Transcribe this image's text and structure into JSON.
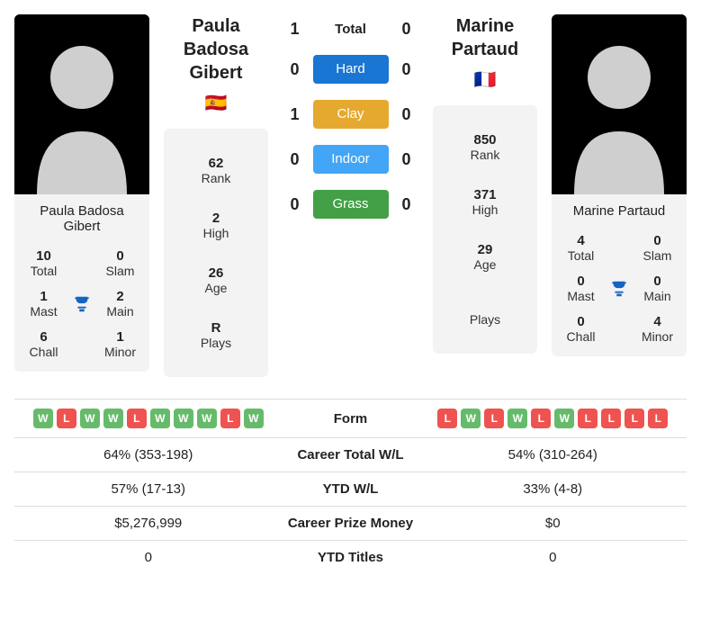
{
  "colors": {
    "hard": "#1976d2",
    "clay": "#e6a92f",
    "indoor": "#42a5f5",
    "grass": "#43a047",
    "form_w": "#66bb6a",
    "form_l": "#ef5350",
    "card_bg": "#f3f3f3",
    "avatar_bg": "#000000",
    "silhouette": "#cfcfcf",
    "trophy": "#1565c0"
  },
  "labels": {
    "total": "Total",
    "slam": "Slam",
    "mast": "Mast",
    "main": "Main",
    "chall": "Chall",
    "minor": "Minor",
    "rank": "Rank",
    "high": "High",
    "age": "Age",
    "plays": "Plays",
    "form": "Form",
    "career_wl": "Career Total W/L",
    "ytd_wl": "YTD W/L",
    "prize": "Career Prize Money",
    "ytd_titles": "YTD Titles"
  },
  "surfaces": [
    {
      "key": "total",
      "label": "Total",
      "p1": 1,
      "p2": 0,
      "chip": false
    },
    {
      "key": "hard",
      "label": "Hard",
      "p1": 0,
      "p2": 0,
      "chip": true,
      "color": "#1976d2"
    },
    {
      "key": "clay",
      "label": "Clay",
      "p1": 1,
      "p2": 0,
      "chip": true,
      "color": "#e6a92f"
    },
    {
      "key": "indoor",
      "label": "Indoor",
      "p1": 0,
      "p2": 0,
      "chip": true,
      "color": "#42a5f5"
    },
    {
      "key": "grass",
      "label": "Grass",
      "p1": 0,
      "p2": 0,
      "chip": true,
      "color": "#43a047"
    }
  ],
  "p1": {
    "name": "Paula Badosa Gibert",
    "flag": "🇪🇸",
    "rank": 62,
    "high": 2,
    "age": 26,
    "plays": "R",
    "titles": {
      "total": 10,
      "slam": 0,
      "mast": 1,
      "main": 2,
      "chall": 6,
      "minor": 1
    },
    "form": [
      "W",
      "L",
      "W",
      "W",
      "L",
      "W",
      "W",
      "W",
      "L",
      "W"
    ],
    "career_wl": "64% (353-198)",
    "ytd_wl": "57% (17-13)",
    "prize": "$5,276,999",
    "ytd_titles": 0
  },
  "p2": {
    "name": "Marine Partaud",
    "flag": "🇫🇷",
    "rank": 850,
    "high": 371,
    "age": 29,
    "plays": "",
    "titles": {
      "total": 4,
      "slam": 0,
      "mast": 0,
      "main": 0,
      "chall": 0,
      "minor": 4
    },
    "form": [
      "L",
      "W",
      "L",
      "W",
      "L",
      "W",
      "L",
      "L",
      "L",
      "L"
    ],
    "career_wl": "54% (310-264)",
    "ytd_wl": "33% (4-8)",
    "prize": "$0",
    "ytd_titles": 0
  }
}
